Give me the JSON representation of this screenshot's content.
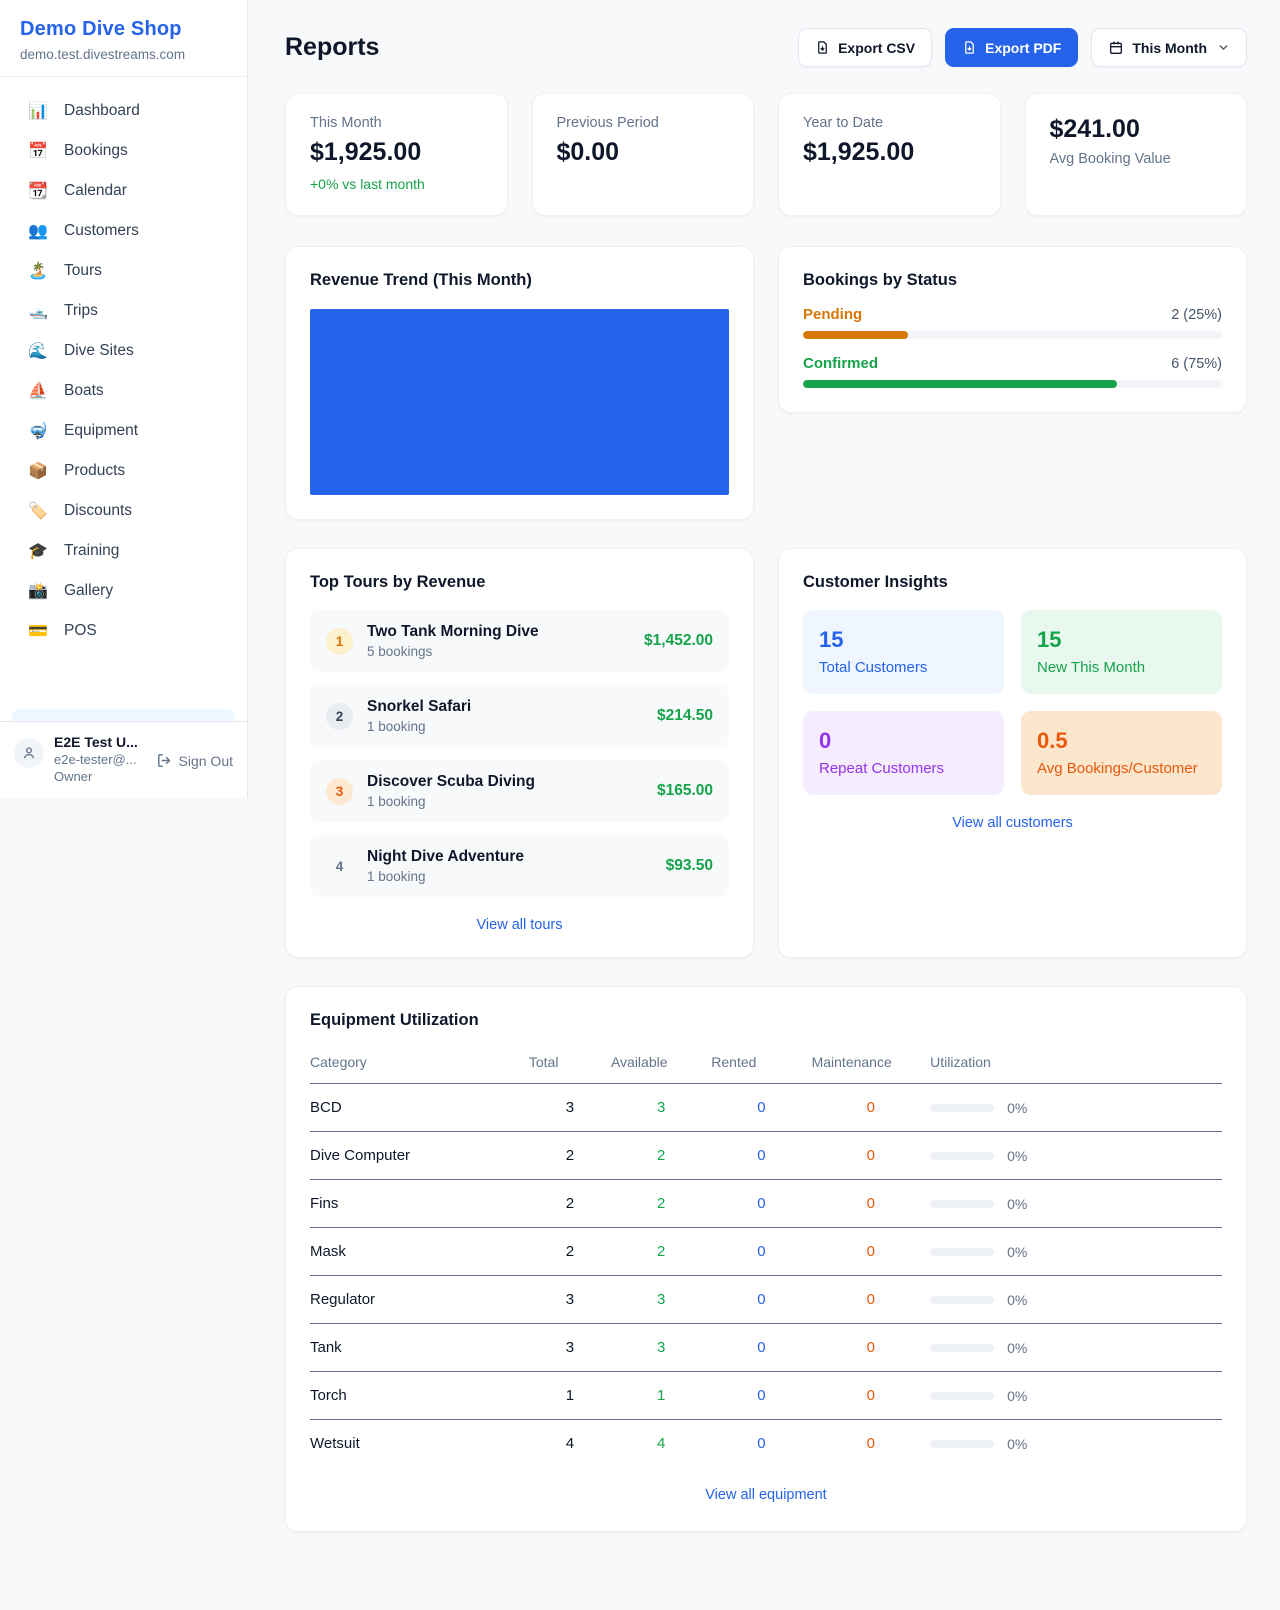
{
  "sidebar": {
    "brand": {
      "name": "Demo Dive Shop",
      "domain": "demo.test.divestreams.com"
    },
    "nav": [
      {
        "icon": "📊",
        "icon_name": "bar-chart-icon",
        "label": "Dashboard"
      },
      {
        "icon": "📅",
        "icon_name": "calendar-date-icon",
        "label": "Bookings"
      },
      {
        "icon": "📆",
        "icon_name": "tear-off-calendar-icon",
        "label": "Calendar"
      },
      {
        "icon": "👥",
        "icon_name": "people-icon",
        "label": "Customers"
      },
      {
        "icon": "🏝️",
        "icon_name": "island-icon",
        "label": "Tours"
      },
      {
        "icon": "🛥️",
        "icon_name": "motorboat-icon",
        "label": "Trips"
      },
      {
        "icon": "🌊",
        "icon_name": "wave-icon",
        "label": "Dive Sites"
      },
      {
        "icon": "⛵",
        "icon_name": "sailboat-icon",
        "label": "Boats"
      },
      {
        "icon": "🤿",
        "icon_name": "diving-mask-icon",
        "label": "Equipment"
      },
      {
        "icon": "📦",
        "icon_name": "package-icon",
        "label": "Products"
      },
      {
        "icon": "🏷️",
        "icon_name": "tag-icon",
        "label": "Discounts"
      },
      {
        "icon": "🎓",
        "icon_name": "graduation-cap-icon",
        "label": "Training"
      },
      {
        "icon": "📸",
        "icon_name": "camera-icon",
        "label": "Gallery"
      },
      {
        "icon": "💳",
        "icon_name": "credit-card-icon",
        "label": "POS"
      }
    ],
    "user": {
      "name": "E2E Test U...",
      "email": "e2e-tester@...",
      "role": "Owner",
      "sign_out_label": "Sign Out"
    }
  },
  "header": {
    "title": "Reports",
    "export_csv_label": "Export CSV",
    "export_pdf_label": "Export PDF",
    "period_label": "This Month"
  },
  "stats": [
    {
      "label": "This Month",
      "value": "$1,925.00",
      "delta": "+0% vs last month",
      "value_first": false
    },
    {
      "label": "Previous Period",
      "value": "$0.00",
      "delta": "",
      "value_first": false
    },
    {
      "label": "Year to Date",
      "value": "$1,925.00",
      "delta": "",
      "value_first": false
    },
    {
      "label": "Avg Booking Value",
      "value": "$241.00",
      "delta": "",
      "value_first": true
    }
  ],
  "revenue_trend": {
    "title": "Revenue Trend (This Month)",
    "bar_color": "#2563eb"
  },
  "bookings_by_status": {
    "title": "Bookings by Status",
    "rows": [
      {
        "label": "Pending",
        "count": "2 (25%)",
        "pct": 25,
        "theme": "orange",
        "color": "#d97706"
      },
      {
        "label": "Confirmed",
        "count": "6 (75%)",
        "pct": 75,
        "theme": "green",
        "color": "#16a34a"
      }
    ]
  },
  "top_tours": {
    "title": "Top Tours by Revenue",
    "rows": [
      {
        "rank": "1",
        "name": "Two Tank Morning Dive",
        "sub": "5 bookings",
        "amount": "$1,452.00"
      },
      {
        "rank": "2",
        "name": "Snorkel Safari",
        "sub": "1 booking",
        "amount": "$214.50"
      },
      {
        "rank": "3",
        "name": "Discover Scuba Diving",
        "sub": "1 booking",
        "amount": "$165.00"
      },
      {
        "rank": "4",
        "name": "Night Dive Adventure",
        "sub": "1 booking",
        "amount": "$93.50"
      }
    ],
    "view_all_label": "View all tours"
  },
  "customer_insights": {
    "title": "Customer Insights",
    "tiles": [
      {
        "value": "15",
        "label": "Total Customers",
        "theme": "blue",
        "color": "#2563eb"
      },
      {
        "value": "15",
        "label": "New This Month",
        "theme": "green",
        "color": "#16a34a"
      },
      {
        "value": "0",
        "label": "Repeat Customers",
        "theme": "purple",
        "color": "#9333ea"
      },
      {
        "value": "0.5",
        "label": "Avg Bookings/Customer",
        "theme": "orange",
        "color": "#ea580c"
      }
    ],
    "view_all_label": "View all customers"
  },
  "equipment": {
    "title": "Equipment Utilization",
    "columns": [
      "Category",
      "Total",
      "Available",
      "Rented",
      "Maintenance",
      "Utilization"
    ],
    "rows": [
      {
        "category": "BCD",
        "total": "3",
        "available": "3",
        "rented": "0",
        "maintenance": "0",
        "utilization": "0%",
        "utilization_pct": 0
      },
      {
        "category": "Dive Computer",
        "total": "2",
        "available": "2",
        "rented": "0",
        "maintenance": "0",
        "utilization": "0%",
        "utilization_pct": 0
      },
      {
        "category": "Fins",
        "total": "2",
        "available": "2",
        "rented": "0",
        "maintenance": "0",
        "utilization": "0%",
        "utilization_pct": 0
      },
      {
        "category": "Mask",
        "total": "2",
        "available": "2",
        "rented": "0",
        "maintenance": "0",
        "utilization": "0%",
        "utilization_pct": 0
      },
      {
        "category": "Regulator",
        "total": "3",
        "available": "3",
        "rented": "0",
        "maintenance": "0",
        "utilization": "0%",
        "utilization_pct": 0
      },
      {
        "category": "Tank",
        "total": "3",
        "available": "3",
        "rented": "0",
        "maintenance": "0",
        "utilization": "0%",
        "utilization_pct": 0
      },
      {
        "category": "Torch",
        "total": "1",
        "available": "1",
        "rented": "0",
        "maintenance": "0",
        "utilization": "0%",
        "utilization_pct": 0
      },
      {
        "category": "Wetsuit",
        "total": "4",
        "available": "4",
        "rented": "0",
        "maintenance": "0",
        "utilization": "0%",
        "utilization_pct": 0
      }
    ],
    "view_all_label": "View all equipment"
  }
}
